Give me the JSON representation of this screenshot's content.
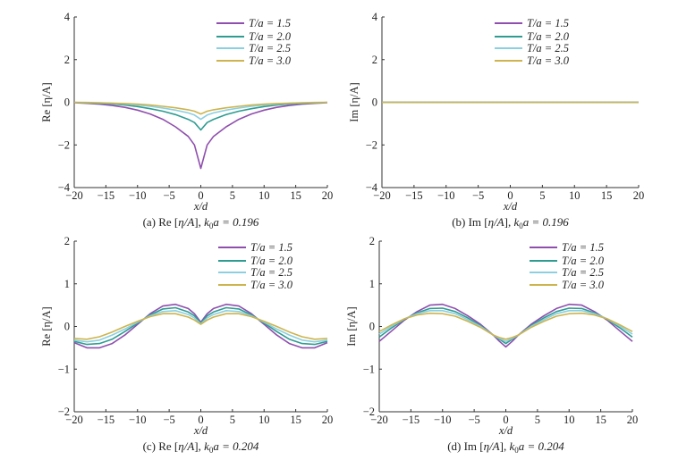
{
  "chart_data": [
    {
      "type": "line",
      "panel": "a",
      "caption": {
        "prefix": "(a) Re [",
        "var": "η/A",
        "mid": "],  ",
        "k": "k",
        "sub": "0",
        "post": "a = 0.196"
      },
      "xlabel": "x/d",
      "ylabel": "Re [η/A]",
      "xlim": [
        -20,
        20
      ],
      "ylim": [
        -4,
        4
      ],
      "xticks": [
        "-20",
        "-15",
        "-10",
        "-5",
        "0",
        "5",
        "10",
        "15",
        "20"
      ],
      "yticks": [
        "-4",
        "-2",
        "0",
        "2",
        "4"
      ],
      "legend": "top-right",
      "x": [
        -20,
        -18,
        -16,
        -14,
        -12,
        -10,
        -8,
        -6,
        -4,
        -2,
        -1,
        0,
        1,
        2,
        4,
        6,
        8,
        10,
        12,
        14,
        16,
        18,
        20
      ],
      "series": [
        {
          "name": "T/a = 1.5",
          "color": "#8f4fae",
          "values": [
            -0.02,
            -0.05,
            -0.09,
            -0.15,
            -0.24,
            -0.37,
            -0.55,
            -0.8,
            -1.15,
            -1.6,
            -2.0,
            -3.1,
            -2.0,
            -1.6,
            -1.15,
            -0.8,
            -0.55,
            -0.37,
            -0.24,
            -0.15,
            -0.09,
            -0.05,
            -0.02
          ]
        },
        {
          "name": "T/a = 2.0",
          "color": "#2f9c92",
          "values": [
            -0.01,
            -0.03,
            -0.05,
            -0.08,
            -0.13,
            -0.2,
            -0.3,
            -0.42,
            -0.58,
            -0.8,
            -0.95,
            -1.3,
            -0.95,
            -0.8,
            -0.58,
            -0.42,
            -0.3,
            -0.2,
            -0.13,
            -0.08,
            -0.05,
            -0.03,
            -0.01
          ]
        },
        {
          "name": "T/a = 2.5",
          "color": "#8ccfe0",
          "values": [
            -0.01,
            -0.02,
            -0.03,
            -0.05,
            -0.08,
            -0.13,
            -0.19,
            -0.27,
            -0.37,
            -0.5,
            -0.6,
            -0.8,
            -0.6,
            -0.5,
            -0.37,
            -0.27,
            -0.19,
            -0.13,
            -0.08,
            -0.05,
            -0.03,
            -0.02,
            -0.01
          ]
        },
        {
          "name": "T/a = 3.0",
          "color": "#cdb44e",
          "values": [
            0,
            -0.01,
            -0.02,
            -0.04,
            -0.06,
            -0.09,
            -0.13,
            -0.19,
            -0.26,
            -0.35,
            -0.42,
            -0.55,
            -0.42,
            -0.35,
            -0.26,
            -0.19,
            -0.13,
            -0.09,
            -0.06,
            -0.04,
            -0.02,
            -0.01,
            0
          ]
        }
      ]
    },
    {
      "type": "line",
      "panel": "b",
      "caption": {
        "prefix": "(b) Im [",
        "var": "η/A",
        "mid": "],  ",
        "k": "k",
        "sub": "0",
        "post": "a = 0.196"
      },
      "xlabel": "x/d",
      "ylabel": "Im [η/A]",
      "xlim": [
        -20,
        20
      ],
      "ylim": [
        -4,
        4
      ],
      "xticks": [
        "-20",
        "-15",
        "-10",
        "-5",
        "0",
        "5",
        "10",
        "15",
        "20"
      ],
      "yticks": [
        "-4",
        "-2",
        "0",
        "2",
        "4"
      ],
      "legend": "top-right",
      "x": [
        -20,
        -18,
        -16,
        -14,
        -12,
        -10,
        -8,
        -6,
        -4,
        -2,
        -1,
        0,
        1,
        2,
        4,
        6,
        8,
        10,
        12,
        14,
        16,
        18,
        20
      ],
      "series": [
        {
          "name": "T/a = 1.5",
          "color": "#8f4fae",
          "values": [
            0,
            0,
            0,
            0,
            0,
            0,
            0,
            0,
            0,
            0,
            0,
            0,
            0,
            0,
            0,
            0,
            0,
            0,
            0,
            0,
            0,
            0,
            0
          ]
        },
        {
          "name": "T/a = 2.0",
          "color": "#2f9c92",
          "values": [
            0,
            0,
            0,
            0,
            0,
            0,
            0,
            0,
            0,
            0,
            0,
            0,
            0,
            0,
            0,
            0,
            0,
            0,
            0,
            0,
            0,
            0,
            0
          ]
        },
        {
          "name": "T/a = 2.5",
          "color": "#8ccfe0",
          "values": [
            0,
            0,
            0,
            0,
            0,
            0,
            0,
            0,
            0,
            0,
            0,
            0,
            0,
            0,
            0,
            0,
            0,
            0,
            0,
            0,
            0,
            0,
            0
          ]
        },
        {
          "name": "T/a = 3.0",
          "color": "#cdb44e",
          "values": [
            0,
            0,
            0,
            0,
            0,
            0,
            0,
            0,
            0,
            0,
            0,
            0,
            0,
            0,
            0,
            0,
            0,
            0,
            0,
            0,
            0,
            0,
            0
          ]
        }
      ]
    },
    {
      "type": "line",
      "panel": "c",
      "caption": {
        "prefix": "(c) Re [",
        "var": "η/A",
        "mid": "],  ",
        "k": "k",
        "sub": "0",
        "post": "a = 0.204"
      },
      "xlabel": "x/d",
      "ylabel": "Re [η/A]",
      "xlim": [
        -20,
        20
      ],
      "ylim": [
        -2,
        2
      ],
      "xticks": [
        "-20",
        "-15",
        "-10",
        "-5",
        "0",
        "5",
        "10",
        "15",
        "20"
      ],
      "yticks": [
        "-2",
        "-1",
        "0",
        "1",
        "2"
      ],
      "legend": "top-right",
      "x": [
        -20,
        -18,
        -16,
        -14,
        -12,
        -10,
        -8,
        -6,
        -4,
        -2,
        -1,
        0,
        1,
        2,
        4,
        6,
        8,
        10,
        12,
        14,
        16,
        18,
        20
      ],
      "series": [
        {
          "name": "T/a = 1.5",
          "color": "#8f4fae",
          "values": [
            -0.38,
            -0.5,
            -0.5,
            -0.4,
            -0.2,
            0.05,
            0.3,
            0.48,
            0.52,
            0.42,
            0.3,
            0.1,
            0.3,
            0.42,
            0.52,
            0.48,
            0.3,
            0.05,
            -0.2,
            -0.4,
            -0.5,
            -0.5,
            -0.38
          ]
        },
        {
          "name": "T/a = 2.0",
          "color": "#2f9c92",
          "values": [
            -0.35,
            -0.42,
            -0.4,
            -0.3,
            -0.12,
            0.08,
            0.27,
            0.41,
            0.44,
            0.34,
            0.25,
            0.08,
            0.25,
            0.34,
            0.44,
            0.41,
            0.27,
            0.08,
            -0.12,
            -0.3,
            -0.4,
            -0.42,
            -0.35
          ]
        },
        {
          "name": "T/a = 2.5",
          "color": "#8ccfe0",
          "values": [
            -0.32,
            -0.36,
            -0.32,
            -0.2,
            -0.06,
            0.1,
            0.25,
            0.35,
            0.37,
            0.28,
            0.2,
            0.06,
            0.2,
            0.28,
            0.37,
            0.35,
            0.25,
            0.1,
            -0.06,
            -0.2,
            -0.32,
            -0.36,
            -0.32
          ]
        },
        {
          "name": "T/a = 3.0",
          "color": "#cdb44e",
          "values": [
            -0.28,
            -0.3,
            -0.24,
            -0.13,
            0,
            0.12,
            0.23,
            0.3,
            0.3,
            0.22,
            0.15,
            0.05,
            0.15,
            0.22,
            0.3,
            0.3,
            0.23,
            0.12,
            0,
            -0.13,
            -0.24,
            -0.3,
            -0.28
          ]
        }
      ]
    },
    {
      "type": "line",
      "panel": "d",
      "caption": {
        "prefix": "(d) Im [",
        "var": "η/A",
        "mid": "],  ",
        "k": "k",
        "sub": "0",
        "post": "a = 0.204"
      },
      "xlabel": "x/d",
      "ylabel": "Im [η/A]",
      "xlim": [
        -20,
        20
      ],
      "ylim": [
        -2,
        2
      ],
      "xticks": [
        "-20",
        "-15",
        "-10",
        "-5",
        "0",
        "5",
        "10",
        "15",
        "20"
      ],
      "yticks": [
        "-2",
        "-1",
        "0",
        "1",
        "2"
      ],
      "legend": "top-right",
      "x": [
        -20,
        -18,
        -16,
        -14,
        -12,
        -10,
        -8,
        -6,
        -4,
        -2,
        -1,
        0,
        1,
        2,
        4,
        6,
        8,
        10,
        12,
        14,
        16,
        18,
        20
      ],
      "series": [
        {
          "name": "T/a = 1.5",
          "color": "#8f4fae",
          "values": [
            -0.35,
            -0.1,
            0.15,
            0.35,
            0.5,
            0.52,
            0.42,
            0.25,
            0.05,
            -0.2,
            -0.35,
            -0.48,
            -0.35,
            -0.2,
            0.05,
            0.25,
            0.42,
            0.52,
            0.5,
            0.35,
            0.15,
            -0.1,
            -0.35
          ]
        },
        {
          "name": "T/a = 2.0",
          "color": "#2f9c92",
          "values": [
            -0.25,
            -0.03,
            0.17,
            0.32,
            0.42,
            0.43,
            0.35,
            0.2,
            0.02,
            -0.2,
            -0.3,
            -0.4,
            -0.3,
            -0.2,
            0.02,
            0.2,
            0.35,
            0.43,
            0.42,
            0.32,
            0.17,
            -0.03,
            -0.25
          ]
        },
        {
          "name": "T/a = 2.5",
          "color": "#8ccfe0",
          "values": [
            -0.18,
            0.01,
            0.18,
            0.3,
            0.37,
            0.37,
            0.3,
            0.16,
            0,
            -0.2,
            -0.28,
            -0.35,
            -0.28,
            -0.2,
            0,
            0.16,
            0.3,
            0.37,
            0.37,
            0.3,
            0.18,
            0.01,
            -0.18
          ]
        },
        {
          "name": "T/a = 3.0",
          "color": "#cdb44e",
          "values": [
            -0.12,
            0.04,
            0.18,
            0.27,
            0.31,
            0.3,
            0.24,
            0.12,
            -0.02,
            -0.2,
            -0.26,
            -0.3,
            -0.26,
            -0.2,
            -0.02,
            0.12,
            0.24,
            0.3,
            0.31,
            0.27,
            0.18,
            0.04,
            -0.12
          ]
        }
      ]
    }
  ]
}
